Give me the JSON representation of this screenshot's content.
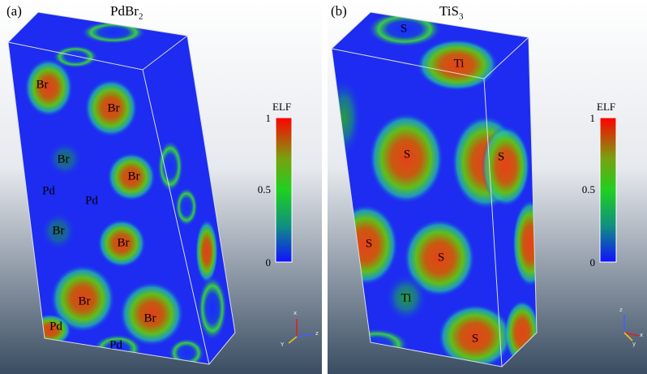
{
  "panels": [
    {
      "label": "(a)",
      "title_main": "PdBr",
      "title_sub": "2",
      "colorbar": {
        "title": "ELF",
        "ticks": [
          "1",
          "0.5",
          "0"
        ]
      },
      "atoms": [
        "Br",
        "Br",
        "Br",
        "Br",
        "Pd",
        "Pd",
        "Br",
        "Br",
        "Br",
        "Br",
        "Pd",
        "Pd"
      ],
      "axes": {
        "up": "x",
        "right": "z",
        "down": "Y"
      }
    },
    {
      "label": "(b)",
      "title_main": "TiS",
      "title_sub": "3",
      "colorbar": {
        "title": "ELF",
        "ticks": [
          "1",
          "0.5",
          "0"
        ]
      },
      "atoms": [
        "S",
        "Ti",
        "S",
        "S",
        "S",
        "S",
        "Ti",
        "S"
      ],
      "axes": {
        "up": "z",
        "right": "x",
        "down": "y"
      }
    }
  ],
  "colors": {
    "bg_top": "#ffffff",
    "bg_bottom": "#3a4d62",
    "elf_low": "#1a1aff",
    "elf_mid": "#22c422",
    "elf_high": "#ff1a00"
  }
}
